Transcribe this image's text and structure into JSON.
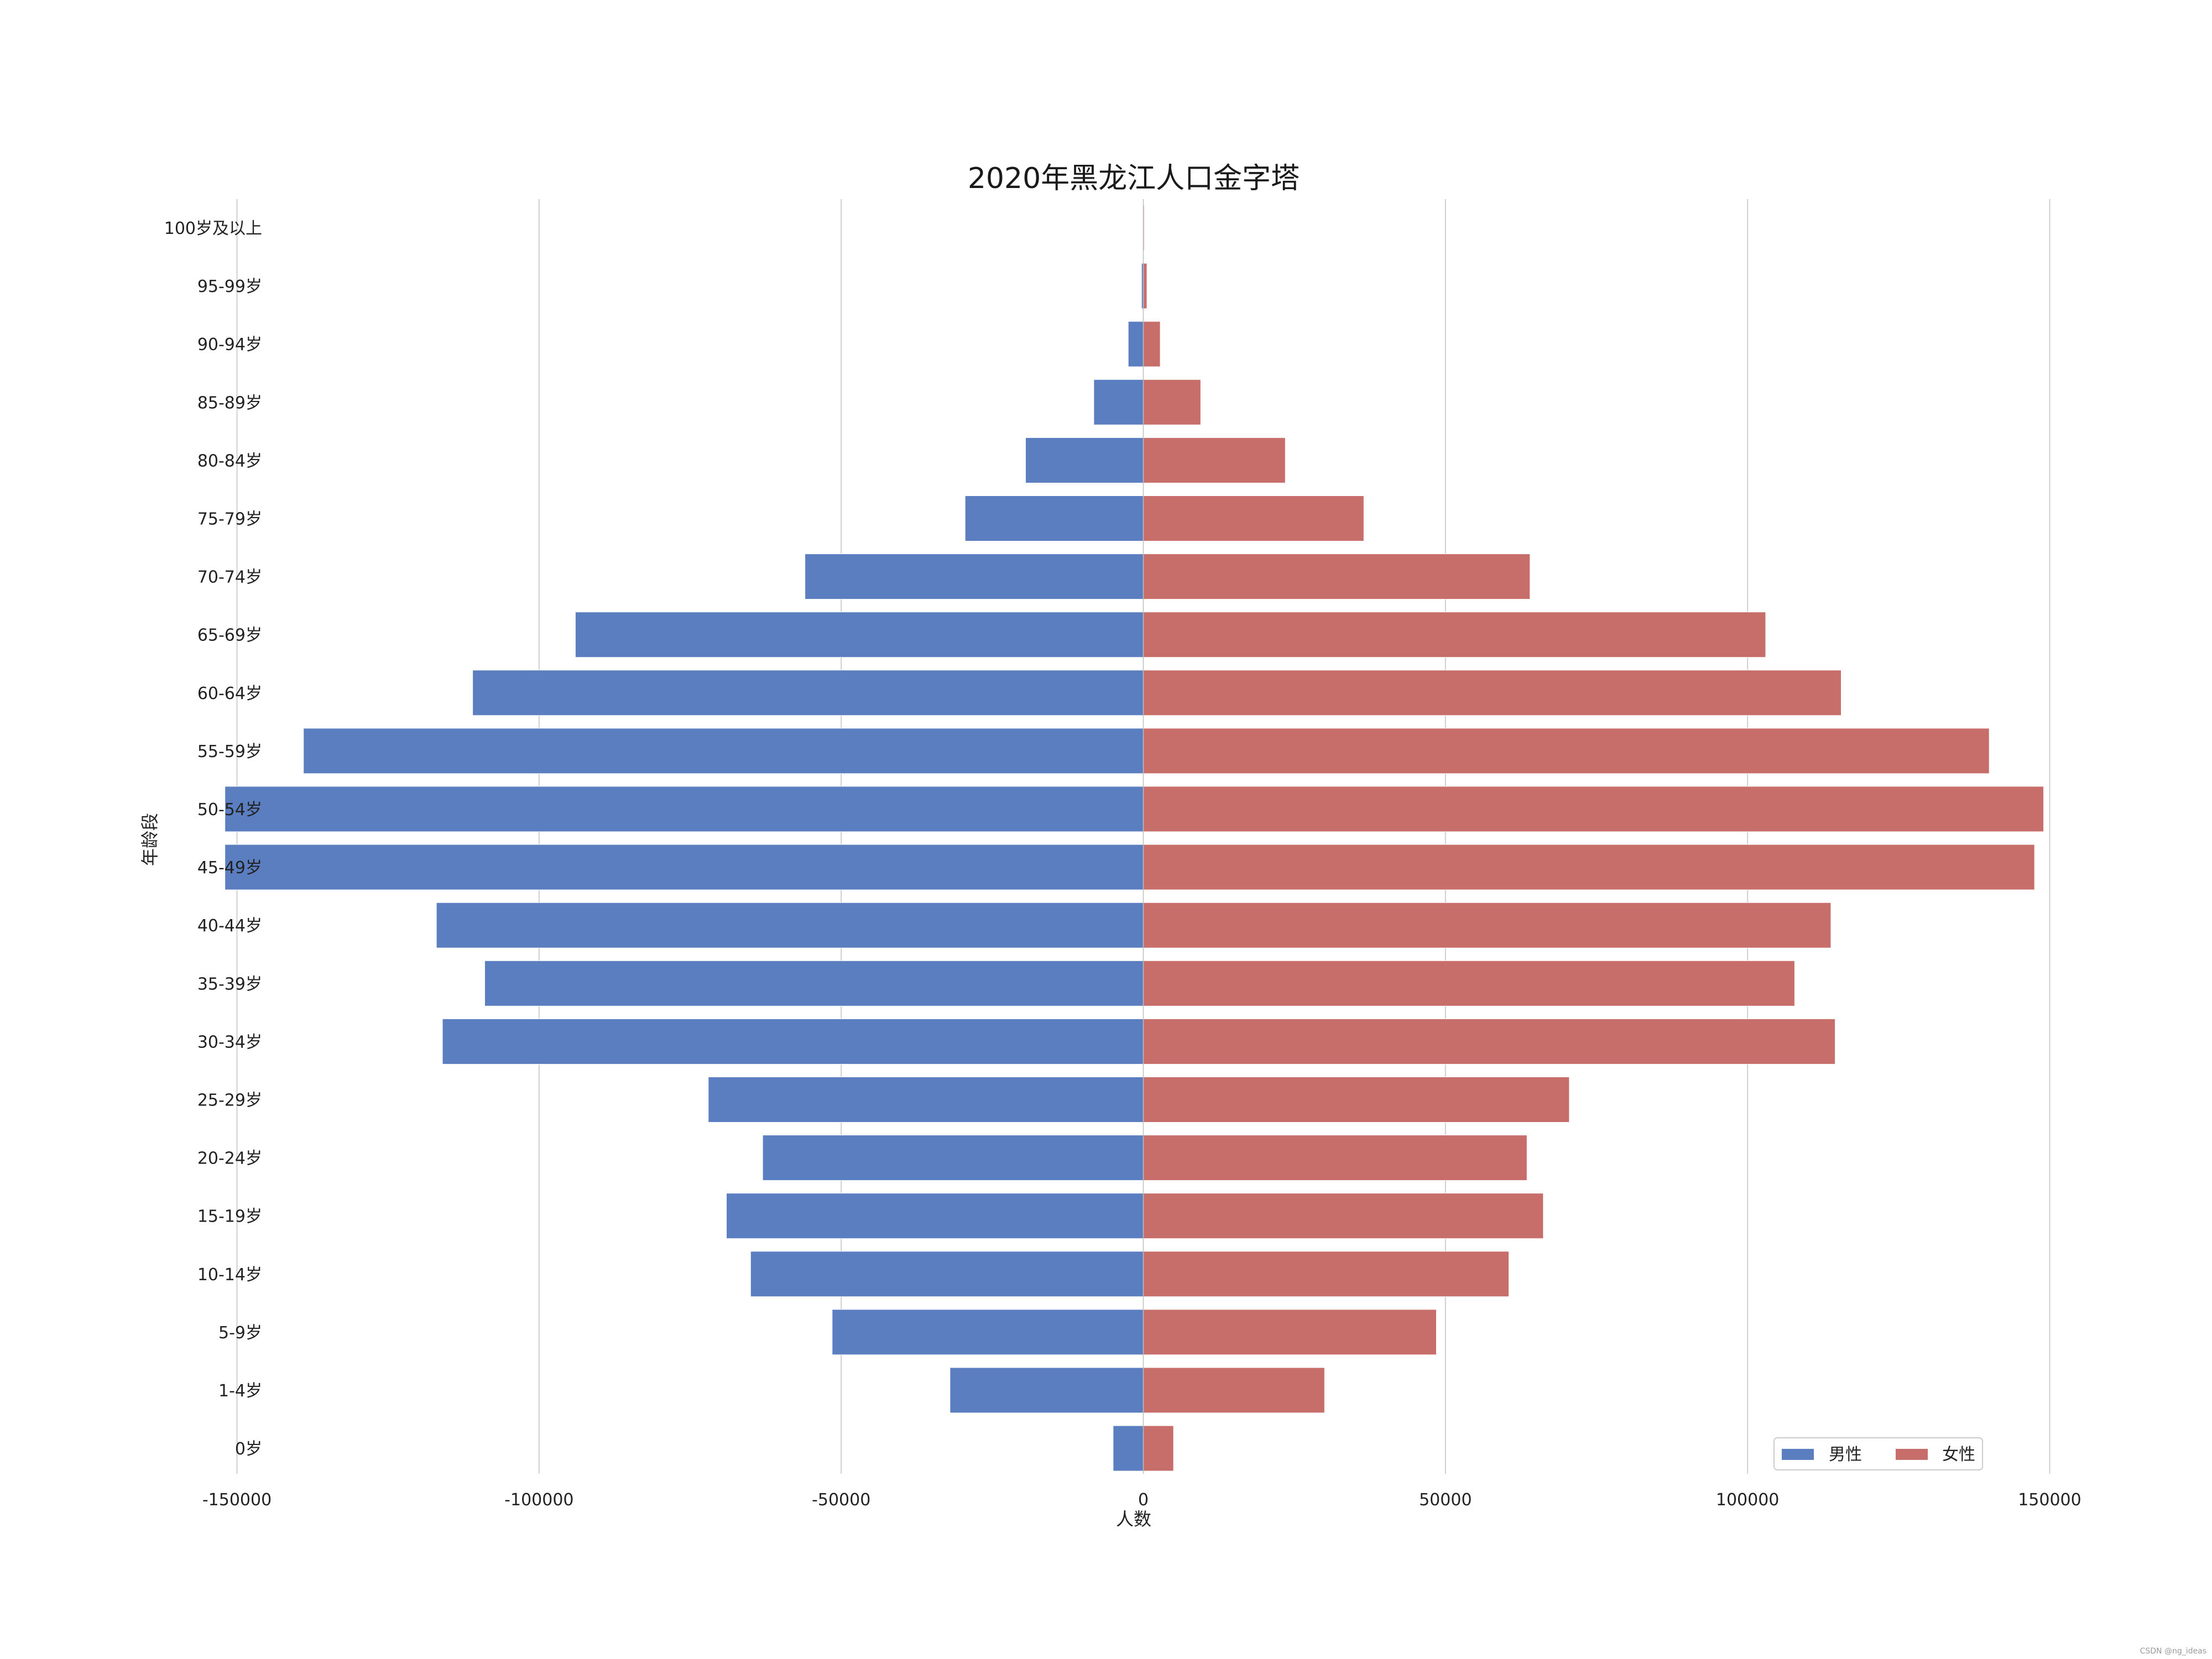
{
  "chart_data": {
    "type": "bar",
    "orientation": "horizontal",
    "layout": "population-pyramid",
    "title": "2020年黑龙江人口金字塔",
    "xlabel": "人数",
    "ylabel": "年龄段",
    "xlim": [
      -170000,
      170000
    ],
    "xticks": [
      -150000,
      -100000,
      -50000,
      0,
      50000,
      100000,
      150000
    ],
    "xtick_labels": [
      "-150000",
      "-100000",
      "-50000",
      "0",
      "50000",
      "100000",
      "150000"
    ],
    "grid": "vertical",
    "legend_position": "bottom-right",
    "categories": [
      "100岁及以上",
      "95-99岁",
      "90-94岁",
      "85-89岁",
      "80-84岁",
      "75-79岁",
      "70-74岁",
      "65-69岁",
      "60-64岁",
      "55-59岁",
      "50-54岁",
      "45-49岁",
      "40-44岁",
      "35-39岁",
      "30-34岁",
      "25-29岁",
      "20-24岁",
      "15-19岁",
      "10-14岁",
      "5-9岁",
      "1-4岁",
      "0岁"
    ],
    "series": [
      {
        "name": "男性",
        "color": "#5a7ec0",
        "values": [
          -60,
          -300,
          -2500,
          -8200,
          -19500,
          -29500,
          -56000,
          -94000,
          -111000,
          -139000,
          -152000,
          -152000,
          -117000,
          -109000,
          -116000,
          -72000,
          -63000,
          -69000,
          -65000,
          -51500,
          -32000,
          -5000
        ]
      },
      {
        "name": "女性",
        "color": "#c76d6a",
        "values": [
          150,
          600,
          2800,
          9500,
          23500,
          36500,
          64000,
          103000,
          115500,
          140000,
          149000,
          147500,
          113800,
          107800,
          114500,
          70500,
          63500,
          66200,
          60500,
          48500,
          30000,
          5000
        ]
      }
    ]
  },
  "watermark": "CSDN @ng_ideas"
}
